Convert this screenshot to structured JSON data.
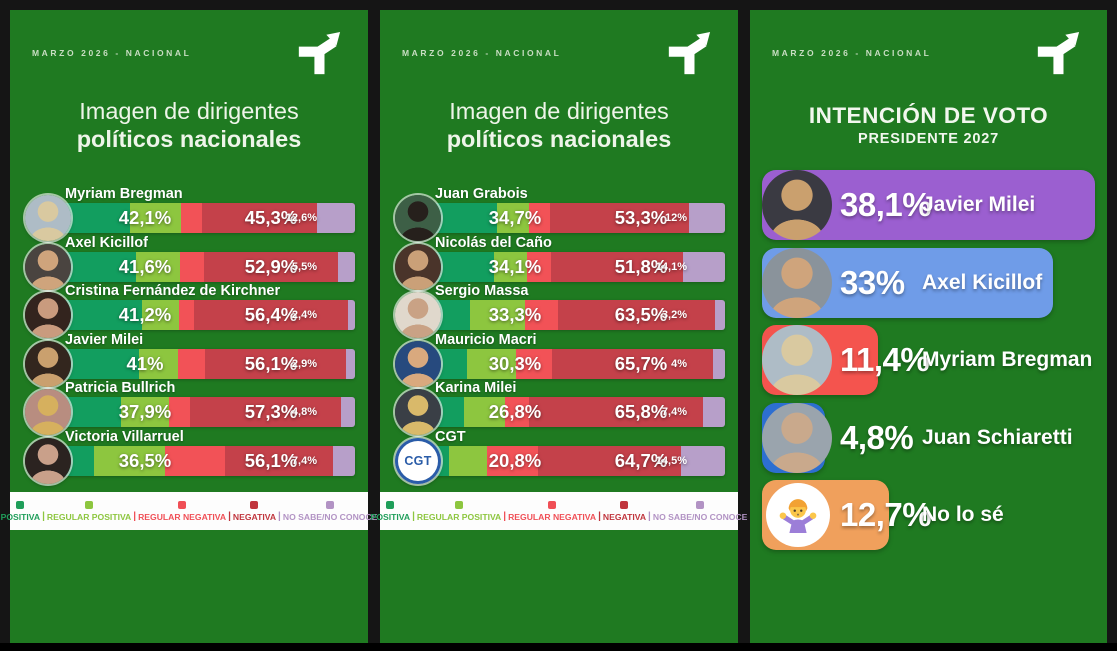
{
  "header": {
    "survey_label": "MARZO 2026 - NACIONAL"
  },
  "colors": {
    "panel_green": "#1f7a21",
    "frame": "#151515",
    "legend_bg": "#fdfdfd",
    "cgt_blue": "#2a5ca8"
  },
  "segment_colors": [
    "#129e5f",
    "#8dc63f",
    "#f25257",
    "#c4414a",
    "#b79fc9"
  ],
  "legend": {
    "items": [
      {
        "label": "POSITIVA",
        "color": "#1f9e5a"
      },
      {
        "label": "REGULAR POSITIVA",
        "color": "#8dc63f"
      },
      {
        "label": "REGULAR NEGATIVA",
        "color": "#f04f56"
      },
      {
        "label": "NEGATIVA",
        "color": "#c0353d"
      },
      {
        "label": "NO SABE/NO CONOCE",
        "color": "#b293c4"
      }
    ]
  },
  "chart_data": [
    {
      "type": "bar",
      "stacked": true,
      "orientation": "horizontal",
      "title_line1": "Imagen de dirigentes",
      "title_line2": "políticos nacionales",
      "legend": [
        "POSITIVA",
        "REGULAR POSITIVA",
        "REGULAR NEGATIVA",
        "NEGATIVA",
        "NO SABE/NO CONOCE"
      ],
      "note": "labels shown are totals: positiva+regular positiva, regular negativa+negativa, no sabe; segments are estimated sub-splits summing to 100",
      "rows": [
        {
          "name": "Myriam Bregman",
          "positive": "42,1%",
          "negative": "45,3%",
          "no_sabe": "12,6%",
          "segments": [
            25,
            17.1,
            7,
            38.3,
            12.6
          ],
          "avatar": [
            "#d9c9a0",
            "#aebcc6"
          ]
        },
        {
          "name": "Axel Kicillof",
          "positive": "41,6%",
          "negative": "52,9%",
          "no_sabe": "5,5%",
          "segments": [
            27,
            14.6,
            8,
            44.9,
            5.5
          ],
          "avatar": [
            "#cfa47c",
            "#4a4440"
          ]
        },
        {
          "name": "Cristina Fernández de Kirchner",
          "positive": "41,2%",
          "negative": "56,4%",
          "no_sabe": "2,4%",
          "segments": [
            29,
            12.2,
            5,
            51.4,
            2.4
          ],
          "avatar": [
            "#c99b7e",
            "#33241e"
          ]
        },
        {
          "name": "Javier Milei",
          "positive": "41%",
          "negative": "56,1%",
          "no_sabe": "2,9%",
          "segments": [
            28,
            13,
            9,
            47.1,
            2.9
          ],
          "avatar": [
            "#caa06e",
            "#33261e"
          ]
        },
        {
          "name": "Patricia Bullrich",
          "positive": "37,9%",
          "negative": "57,3%",
          "no_sabe": "4,8%",
          "segments": [
            22,
            15.9,
            7,
            50.3,
            4.8
          ],
          "avatar": [
            "#d6b05e",
            "#b88d80"
          ]
        },
        {
          "name": "Victoria Villarruel",
          "positive": "36,5%",
          "negative": "56,1%",
          "no_sabe": "7,4%",
          "segments": [
            13,
            23.5,
            20,
            36.1,
            7.4
          ],
          "avatar": [
            "#c9a08a",
            "#2b2320"
          ]
        }
      ]
    },
    {
      "type": "bar",
      "stacked": true,
      "orientation": "horizontal",
      "title_line1": "Imagen de dirigentes",
      "title_line2": "políticos nacionales",
      "legend": [
        "POSITIVA",
        "REGULAR POSITIVA",
        "REGULAR NEGATIVA",
        "NEGATIVA",
        "NO SABE/NO CONOCE"
      ],
      "rows": [
        {
          "name": "Juan Grabois",
          "positive": "34,7%",
          "negative": "53,3%",
          "no_sabe": "12%",
          "segments": [
            24,
            10.7,
            7,
            46.3,
            12
          ],
          "avatar": [
            "#26201c",
            "#3d5f46"
          ]
        },
        {
          "name": "Nicolás del Caño",
          "positive": "34,1%",
          "negative": "51,8%",
          "no_sabe": "14,1%",
          "segments": [
            23,
            11.1,
            8,
            43.8,
            14.1
          ],
          "avatar": [
            "#caa078",
            "#4a342a"
          ]
        },
        {
          "name": "Sergio Massa",
          "positive": "33,3%",
          "negative": "63,5%",
          "no_sabe": "3,2%",
          "segments": [
            15,
            18.3,
            11,
            52.5,
            3.2
          ],
          "avatar": [
            "#c9a285",
            "#e0d8cc"
          ]
        },
        {
          "name": "Mauricio Macri",
          "positive": "30,3%",
          "negative": "65,7%",
          "no_sabe": "4%",
          "segments": [
            14,
            16.3,
            12,
            53.7,
            4
          ],
          "avatar": [
            "#d9a97e",
            "#274a7e"
          ]
        },
        {
          "name": "Karina Milei",
          "positive": "26,8%",
          "negative": "65,8%",
          "no_sabe": "7,4%",
          "segments": [
            13,
            13.8,
            8,
            57.8,
            7.4
          ],
          "avatar": [
            "#d9b96a",
            "#3a3f46"
          ]
        },
        {
          "name": "CGT",
          "positive": "20,8%",
          "negative": "64,7%",
          "no_sabe": "14,5%",
          "segments": [
            8,
            12.8,
            17,
            47.7,
            14.5
          ],
          "logo": "CGT"
        }
      ]
    },
    {
      "type": "bar",
      "orientation": "horizontal",
      "title": "INTENCIÓN DE VOTO",
      "subtitle": "PRESIDENTE 2027",
      "rows": [
        {
          "name": "Javier Milei",
          "value": "38,1%",
          "value_num": 38.1,
          "color": "#9b5fd0",
          "avatar": [
            "#caa06e",
            "#3a3a42"
          ]
        },
        {
          "name": "Axel Kicillof",
          "value": "33%",
          "value_num": 33,
          "color": "#6f9ce8",
          "avatar": [
            "#cfa47c",
            "#8a939b"
          ]
        },
        {
          "name": "Myriam Bregman",
          "value": "11,4%",
          "value_num": 11.4,
          "color": "#f4544e",
          "avatar": [
            "#d9c9a0",
            "#aebcc6"
          ]
        },
        {
          "name": "Juan Schiaretti",
          "value": "4,8%",
          "value_num": 4.8,
          "color": "#2d6fd1",
          "avatar": [
            "#c9a98c",
            "#9aa4ad"
          ]
        },
        {
          "name": "No lo sé",
          "value": "12,7%",
          "value_num": 12.7,
          "color": "#f0a05c",
          "icon": "shrug"
        }
      ]
    }
  ]
}
